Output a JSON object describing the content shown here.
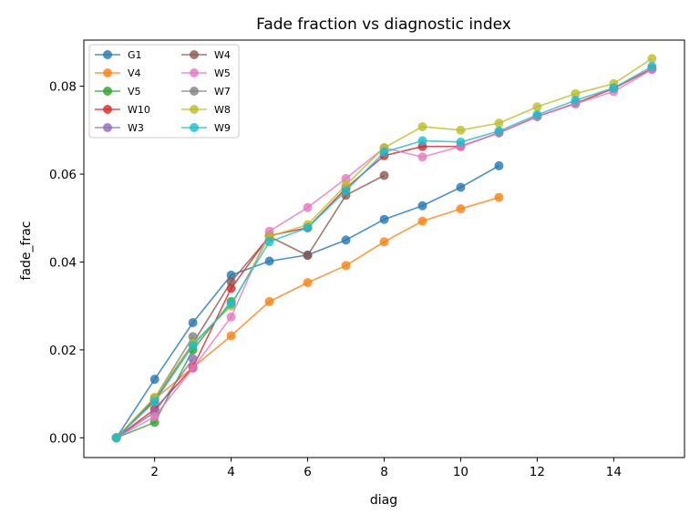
{
  "chart_data": {
    "type": "line",
    "title": "Fade fraction vs diagnostic index",
    "xlabel": "diag",
    "ylabel": "fade_frac",
    "xlim": [
      0.15,
      15.85
    ],
    "ylim": [
      -0.0045,
      0.0905
    ],
    "xticks": [
      2,
      4,
      6,
      8,
      10,
      12,
      14
    ],
    "yticks": [
      0.0,
      0.02,
      0.04,
      0.06,
      0.08
    ],
    "ytick_labels": [
      "0.00",
      "0.02",
      "0.04",
      "0.06",
      "0.08"
    ],
    "legend_position": "top-left",
    "legend_columns": 2,
    "grid": false,
    "series": [
      {
        "name": "G1",
        "color": "#1f77b4",
        "x": [
          1,
          2,
          3,
          4,
          5,
          6,
          7,
          8,
          9,
          10,
          11
        ],
        "y": [
          0.0,
          0.0133,
          0.0262,
          0.037,
          0.0402,
          0.0416,
          0.045,
          0.0497,
          0.0528,
          0.057,
          0.0619
        ]
      },
      {
        "name": "V4",
        "color": "#ff7f0e",
        "x": [
          1,
          2,
          3,
          4,
          5,
          6,
          7,
          8,
          9,
          10,
          11
        ],
        "y": [
          0.0,
          0.0088,
          0.016,
          0.0232,
          0.031,
          0.0353,
          0.0392,
          0.0446,
          0.0493,
          0.0521,
          0.0547
        ]
      },
      {
        "name": "V5",
        "color": "#2ca02c",
        "x": [
          1,
          2,
          3,
          4
        ],
        "y": [
          0.0,
          0.0035,
          0.02,
          0.031
        ]
      },
      {
        "name": "W10",
        "color": "#d62728",
        "x": [
          1,
          2,
          3,
          4,
          5,
          6,
          7,
          8,
          9,
          10,
          11,
          12,
          13,
          14,
          15
        ],
        "y": [
          0.0,
          0.0065,
          0.016,
          0.034,
          0.046,
          0.0478,
          0.0568,
          0.0642,
          0.0663,
          0.0663,
          0.0694,
          0.0731,
          0.0761,
          0.0795,
          0.084
        ]
      },
      {
        "name": "W3",
        "color": "#9467bd",
        "x": [
          1,
          2,
          3
        ],
        "y": [
          0.0,
          0.0058,
          0.018
        ]
      },
      {
        "name": "W4",
        "color": "#8c564b",
        "x": [
          1,
          2,
          3,
          4,
          5,
          6,
          7,
          8
        ],
        "y": [
          0.0,
          0.0085,
          0.0215,
          0.0355,
          0.0458,
          0.0415,
          0.0552,
          0.0597
        ]
      },
      {
        "name": "W5",
        "color": "#e377c2",
        "x": [
          1,
          2,
          3,
          4,
          5,
          6,
          7,
          8,
          9,
          10,
          11,
          12,
          13,
          14,
          15
        ],
        "y": [
          0.0,
          0.0048,
          0.0158,
          0.0275,
          0.047,
          0.0524,
          0.059,
          0.066,
          0.0639,
          0.0663,
          0.0694,
          0.0731,
          0.076,
          0.0788,
          0.0838
        ]
      },
      {
        "name": "W7",
        "color": "#7f7f7f",
        "x": [
          1,
          2,
          3
        ],
        "y": [
          0.0,
          0.009,
          0.023
        ]
      },
      {
        "name": "W8",
        "color": "#bcbd22",
        "x": [
          1,
          2,
          3,
          4,
          5,
          6,
          7,
          8,
          9,
          10,
          11,
          12,
          13,
          14,
          15
        ],
        "y": [
          0.0,
          0.0092,
          0.0215,
          0.03,
          0.0458,
          0.0485,
          0.0575,
          0.066,
          0.0708,
          0.07,
          0.0716,
          0.0753,
          0.0783,
          0.0806,
          0.0863
        ]
      },
      {
        "name": "W9",
        "color": "#17becf",
        "x": [
          1,
          2,
          3,
          4,
          5,
          6,
          7,
          8,
          9,
          10,
          11,
          12,
          13,
          14,
          15
        ],
        "y": [
          0.0,
          0.0082,
          0.021,
          0.0305,
          0.0446,
          0.0478,
          0.0562,
          0.065,
          0.0676,
          0.0673,
          0.0698,
          0.0735,
          0.0768,
          0.0796,
          0.0845
        ]
      }
    ]
  }
}
